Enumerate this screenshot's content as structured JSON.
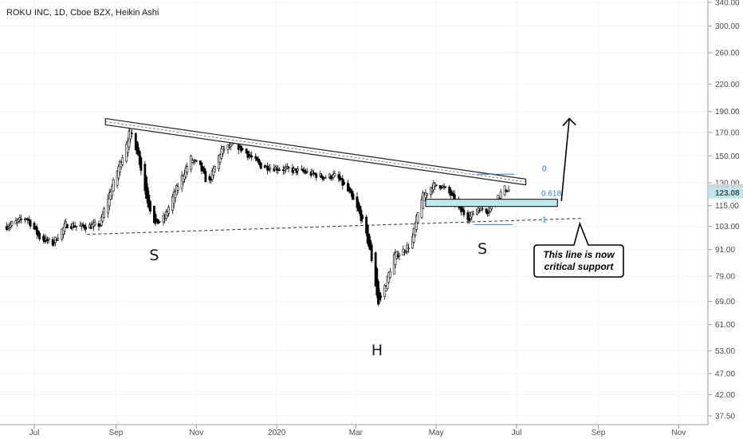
{
  "header": {
    "title": "ROKU INC, 1D, Cboe BZX, Heikin Ashi"
  },
  "chart_data": {
    "type": "candlestick",
    "ylim": [
      37.5,
      345
    ],
    "y_scale": "log",
    "y_ticks": [
      "340.00",
      "300.00",
      "260.00",
      "220.00",
      "190.00",
      "170.00",
      "150.00",
      "130.00",
      "115.00",
      "103.00",
      "91.00",
      "79.00",
      "69.00",
      "61.00",
      "53.00",
      "47.00",
      "42.00",
      "37.50"
    ],
    "x_ticks": [
      "Jul",
      "Sep",
      "Nov",
      "2020",
      "Mar",
      "May",
      "Jul",
      "Sep",
      "Nov"
    ],
    "price_labels": [
      {
        "text": "125.14",
        "value": 125.14,
        "color": "#d1d4dc"
      },
      {
        "text": "123.08",
        "value": 123.08,
        "color": "#bde8ee"
      }
    ],
    "pattern_labels": [
      "S",
      "H",
      "S"
    ],
    "fib_levels": [
      {
        "label": "0",
        "value": 136
      },
      {
        "label": "0.618",
        "value": 116.5
      },
      {
        "label": "1",
        "value": 104
      }
    ],
    "annotation": [
      "This line is now",
      "critical support"
    ],
    "price_path": [
      [
        "2019-06-10",
        103
      ],
      [
        "2019-06-25",
        108
      ],
      [
        "2019-07-05",
        97
      ],
      [
        "2019-07-15",
        94
      ],
      [
        "2019-07-25",
        104
      ],
      [
        "2019-08-05",
        103
      ],
      [
        "2019-08-12",
        103
      ],
      [
        "2019-08-20",
        104
      ],
      [
        "2019-08-24",
        115
      ],
      [
        "2019-08-30",
        130
      ],
      [
        "2019-09-06",
        150
      ],
      [
        "2019-09-12",
        172
      ],
      [
        "2019-09-18",
        150
      ],
      [
        "2019-09-24",
        120
      ],
      [
        "2019-10-01",
        104
      ],
      [
        "2019-10-08",
        108
      ],
      [
        "2019-10-18",
        128
      ],
      [
        "2019-10-28",
        148
      ],
      [
        "2019-11-04",
        141
      ],
      [
        "2019-11-10",
        128
      ],
      [
        "2019-11-20",
        155
      ],
      [
        "2019-11-30",
        160
      ],
      [
        "2019-12-08",
        153
      ],
      [
        "2019-12-20",
        142
      ],
      [
        "2020-01-05",
        140
      ],
      [
        "2020-01-20",
        138
      ],
      [
        "2020-02-05",
        134
      ],
      [
        "2020-02-15",
        135
      ],
      [
        "2020-02-25",
        123
      ],
      [
        "2020-03-05",
        108
      ],
      [
        "2020-03-12",
        90
      ],
      [
        "2020-03-18",
        68
      ],
      [
        "2020-03-24",
        76
      ],
      [
        "2020-03-30",
        88
      ],
      [
        "2020-04-05",
        90
      ],
      [
        "2020-04-12",
        94
      ],
      [
        "2020-04-20",
        120
      ],
      [
        "2020-04-28",
        128
      ],
      [
        "2020-05-05",
        128
      ],
      [
        "2020-05-12",
        122
      ],
      [
        "2020-05-19",
        112
      ],
      [
        "2020-05-26",
        108
      ],
      [
        "2020-06-02",
        114
      ],
      [
        "2020-06-09",
        112
      ],
      [
        "2020-06-16",
        120
      ],
      [
        "2020-06-22",
        126
      ],
      [
        "2020-06-25",
        125
      ]
    ]
  }
}
